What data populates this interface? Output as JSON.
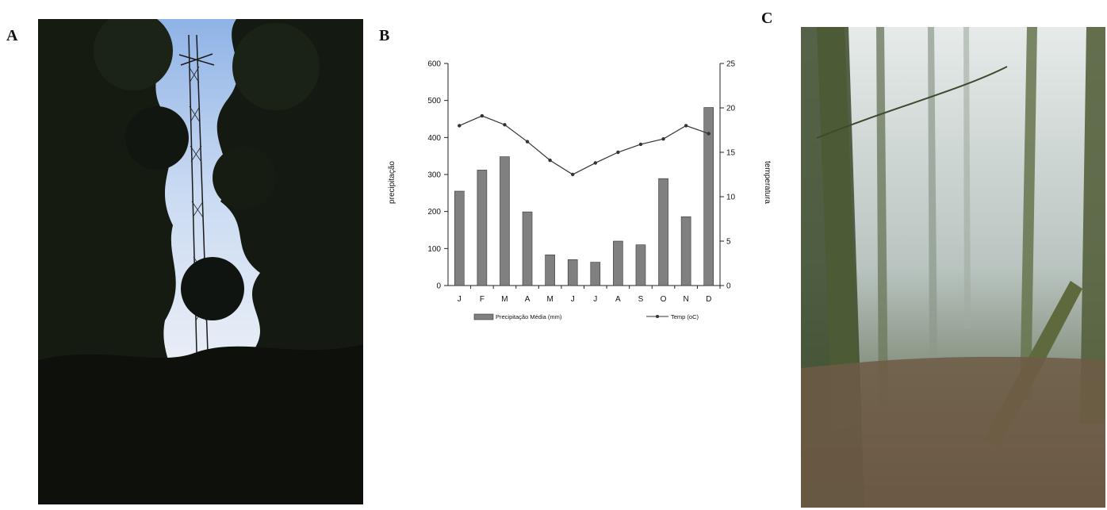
{
  "panels": {
    "a": "A",
    "b": "B",
    "c": "C"
  },
  "chart_data": {
    "type": "bar",
    "categories": [
      "J",
      "F",
      "M",
      "A",
      "M",
      "J",
      "J",
      "A",
      "S",
      "O",
      "N",
      "D"
    ],
    "series": [
      {
        "name": "Precipitação Média (mm)",
        "type": "bar",
        "axis": "left",
        "values": [
          255,
          312,
          348,
          199,
          83,
          70,
          63,
          120,
          110,
          289,
          186,
          481
        ]
      },
      {
        "name": "Temp (oC)",
        "type": "line",
        "axis": "right",
        "values": [
          18.0,
          19.1,
          18.1,
          16.2,
          14.1,
          12.5,
          13.8,
          15.0,
          15.9,
          16.5,
          18.0,
          17.1
        ]
      }
    ],
    "ylabel": "precipitação",
    "y2label": "temperatura",
    "ylim": [
      0,
      600
    ],
    "y2lim": [
      0,
      25
    ],
    "yticks": [
      0,
      100,
      200,
      300,
      400,
      500,
      600
    ],
    "y2ticks": [
      0,
      5,
      10,
      15,
      20,
      25
    ],
    "bar_color": "#808080",
    "line_color": "#333333",
    "legend_position": "bottom"
  }
}
